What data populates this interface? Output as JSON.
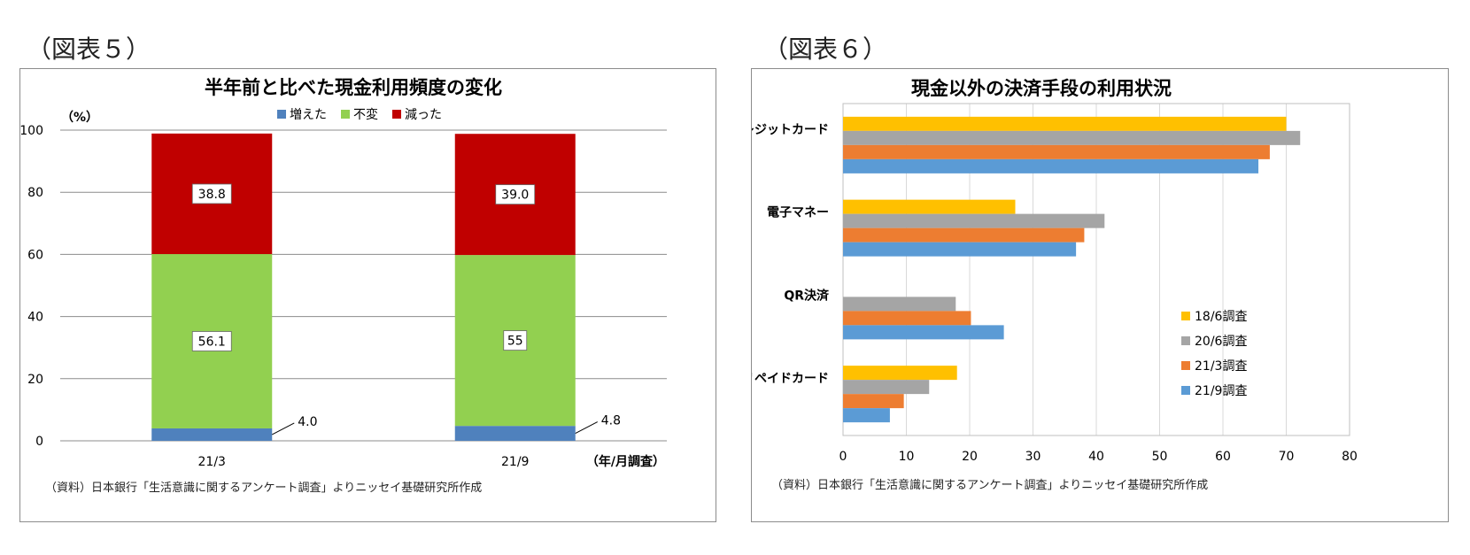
{
  "figures": [
    {
      "label": "（図表５）"
    },
    {
      "label": "（図表６）"
    }
  ],
  "chart_data": [
    {
      "type": "bar",
      "stacked": true,
      "title": "半年前と比べた現金利用頻度の変化",
      "ylabel": "（%）",
      "xlabel": "（年/月調査）",
      "categories": [
        "21/3",
        "21/9"
      ],
      "ylim": [
        0,
        100
      ],
      "yticks": [
        0,
        20,
        40,
        60,
        80,
        100
      ],
      "grid": true,
      "legend_position": "top",
      "series": [
        {
          "name": "増えた",
          "values": [
            4.0,
            4.8
          ],
          "labels": [
            "4.0",
            "4.8"
          ],
          "color": "#4f81bd"
        },
        {
          "name": "不変",
          "values": [
            56.1,
            55
          ],
          "labels": [
            "56.1",
            "55"
          ],
          "color": "#92d050"
        },
        {
          "name": "減った",
          "values": [
            38.8,
            39.0
          ],
          "labels": [
            "38.8",
            "39.0"
          ],
          "color": "#c00000"
        }
      ],
      "source": "（資料）日本銀行「生活意識に関するアンケート調査」よりニッセイ基礎研究所作成"
    },
    {
      "type": "bar",
      "orientation": "horizontal",
      "title": "現金以外の決済手段の利用状況",
      "categories": [
        "クレジットカード",
        "電子マネー",
        "QR決済",
        "プリペイドカード"
      ],
      "xlim": [
        0,
        80
      ],
      "xticks": [
        0,
        10,
        20,
        30,
        40,
        50,
        60,
        70,
        80
      ],
      "grid": true,
      "legend_position": "right",
      "series": [
        {
          "name": "18/6調査",
          "values": [
            70,
            27.2,
            null,
            18
          ],
          "color": "#ffc000"
        },
        {
          "name": "20/6調査",
          "values": [
            72.2,
            41.3,
            17.8,
            13.6
          ],
          "color": "#a5a5a5"
        },
        {
          "name": "21/3調査",
          "values": [
            67.4,
            38.1,
            20.2,
            9.6
          ],
          "color": "#ed7d31"
        },
        {
          "name": "21/9調査",
          "values": [
            65.6,
            36.8,
            25.4,
            7.4
          ],
          "color": "#5b9bd5"
        }
      ],
      "source": "（資料）日本銀行「生活意識に関するアンケート調査」よりニッセイ基礎研究所作成"
    }
  ]
}
